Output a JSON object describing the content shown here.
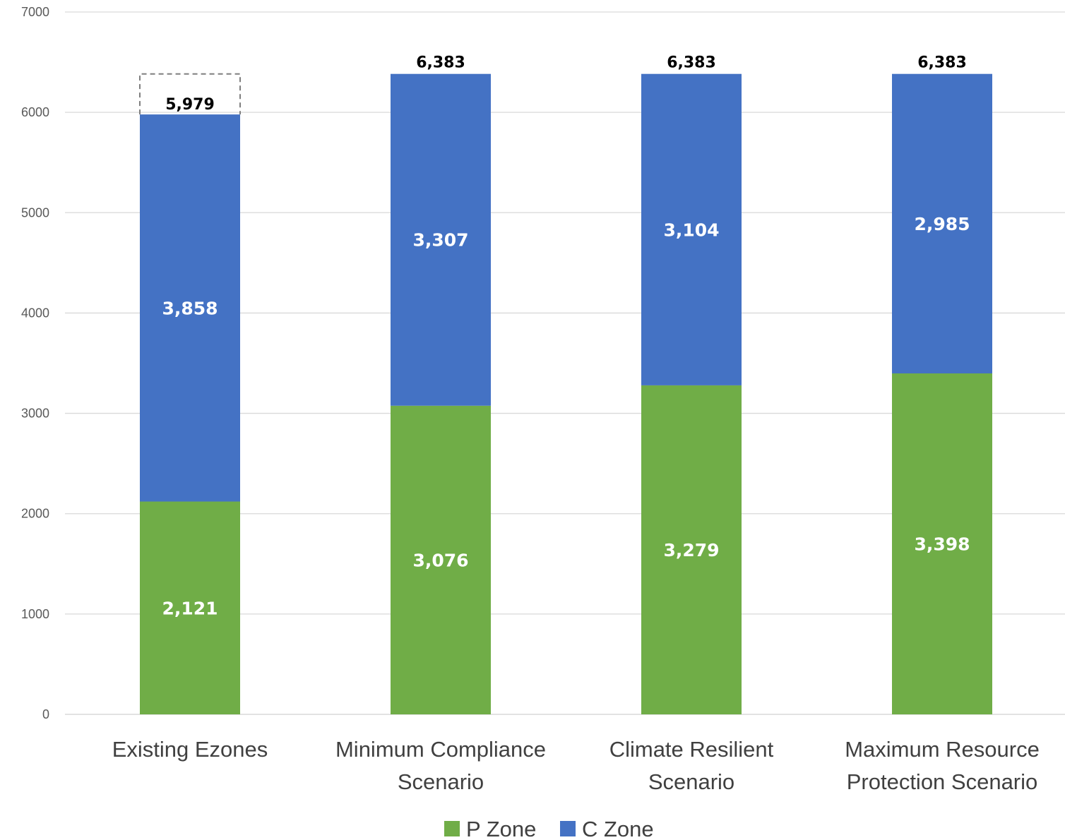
{
  "chart_data": {
    "type": "bar",
    "stacked": true,
    "categories": [
      [
        "Existing Ezones"
      ],
      [
        "Minimum Compliance",
        "Scenario"
      ],
      [
        "Climate Resilient",
        "Scenario"
      ],
      [
        "Maximum Resource",
        "Protection Scenario"
      ]
    ],
    "series": [
      {
        "name": "P Zone",
        "color": "#70AD47",
        "values": [
          2121,
          3076,
          3279,
          3398
        ],
        "labels": [
          "2,121",
          "3,076",
          "3,279",
          "3,398"
        ]
      },
      {
        "name": "C Zone",
        "color": "#4472C4",
        "values": [
          3858,
          3307,
          3104,
          2985
        ],
        "labels": [
          "3,858",
          "3,307",
          "3,104",
          "2,985"
        ]
      }
    ],
    "totals": {
      "values": [
        5979,
        6383,
        6383,
        6383
      ],
      "labels": [
        "5,979",
        "6,383",
        "6,383",
        "6,383"
      ]
    },
    "dashed_outline": {
      "category_index": 0,
      "top_value": 6383
    },
    "ylim": [
      0,
      7000
    ],
    "yticks": [
      0,
      1000,
      2000,
      3000,
      4000,
      5000,
      6000,
      7000
    ],
    "grid": true,
    "legend_position": "bottom",
    "gridline_color": "#D9D9D9"
  }
}
